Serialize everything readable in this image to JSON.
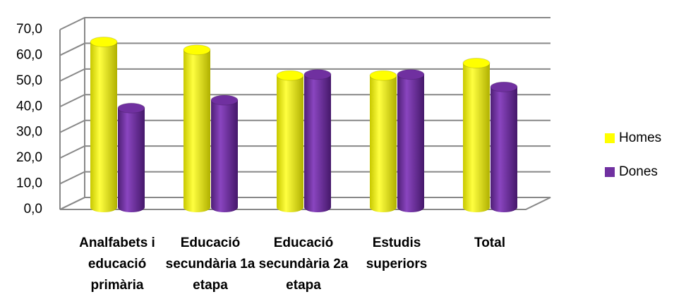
{
  "chart_data": {
    "type": "bar",
    "categories": [
      "Analfabets i educació primària",
      "Educació secundària 1a etapa",
      "Educació secundària 2a etapa",
      "Estudis superiors",
      "Total"
    ],
    "series": [
      {
        "name": "Homes",
        "color": "#ffff00",
        "values": [
          62.5,
          59.5,
          49.8,
          49.8,
          54.5
        ]
      },
      {
        "name": "Dones",
        "color": "#7030a0",
        "values": [
          37.5,
          40.5,
          50.2,
          50.2,
          45.5
        ]
      }
    ],
    "ylim": [
      0,
      70
    ],
    "yticks": [
      {
        "value": 0,
        "label": "0,0"
      },
      {
        "value": 10,
        "label": "10,0"
      },
      {
        "value": 20,
        "label": "20,0"
      },
      {
        "value": 30,
        "label": "30,0"
      },
      {
        "value": 40,
        "label": "40,0"
      },
      {
        "value": 50,
        "label": "50,0"
      },
      {
        "value": 60,
        "label": "60,0"
      },
      {
        "value": 70,
        "label": "70,0"
      }
    ],
    "grid": true,
    "legend": "right"
  }
}
